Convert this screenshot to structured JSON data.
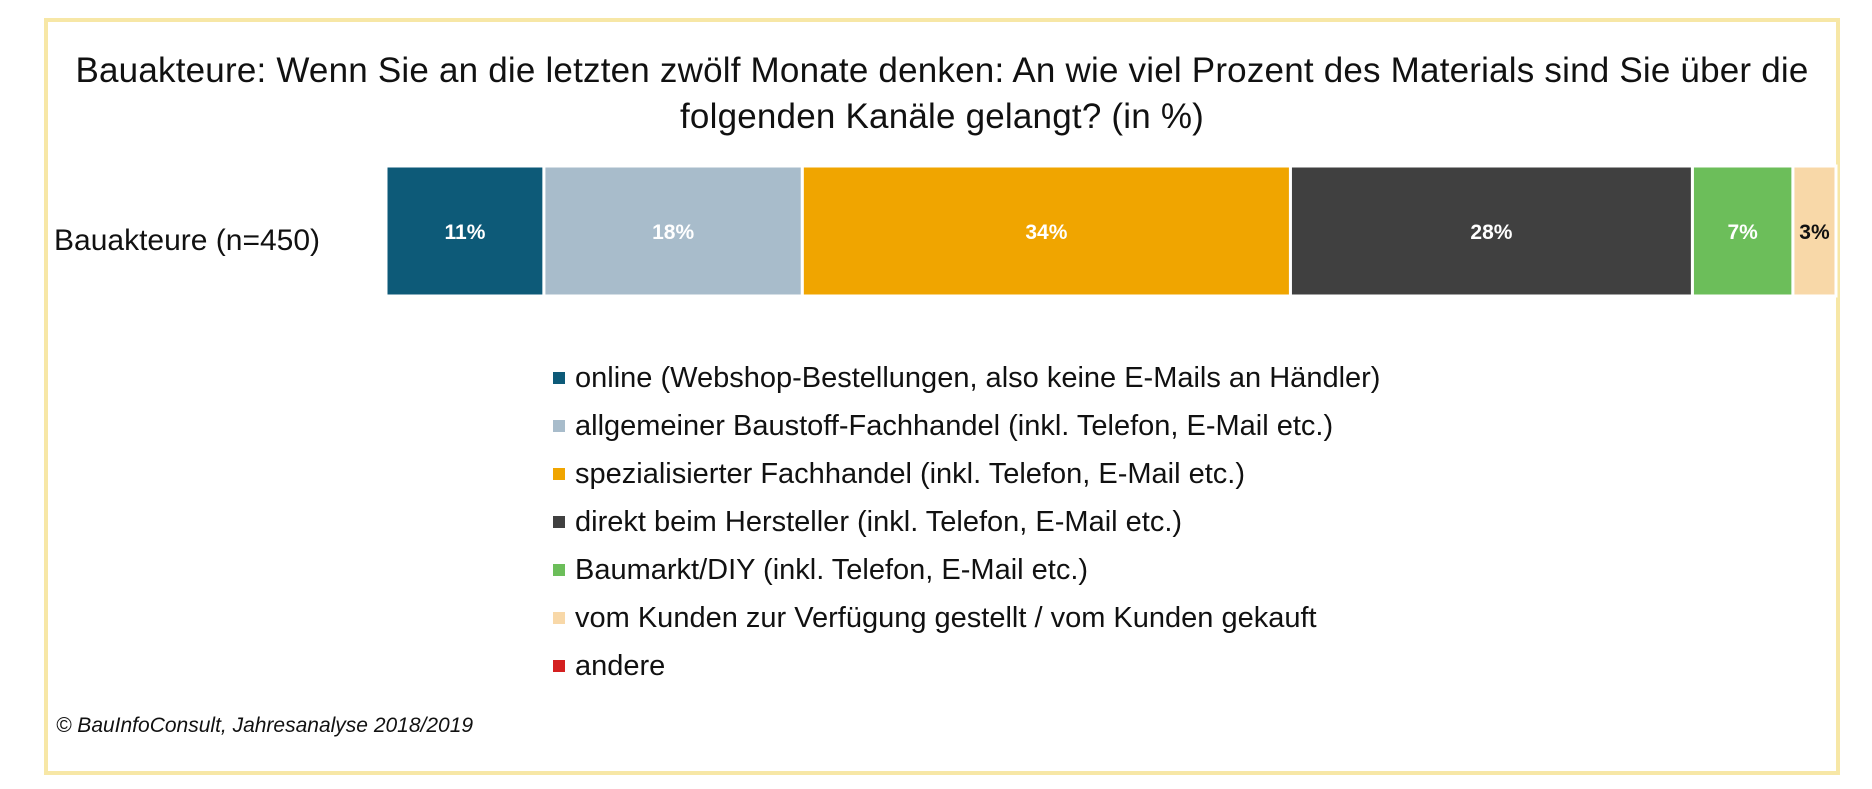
{
  "chart_data": {
    "type": "bar",
    "orientation": "horizontal",
    "stacked": "100%",
    "title": "Bauakteure: Wenn Sie an die letzten zwölf Monate denken: An wie viel Prozent des Materials sind Sie über die folgenden Kanäle gelangt? (in %)",
    "categories": [
      "Bauakteure (n=450)"
    ],
    "series": [
      {
        "name": "online (Webshop-Bestellungen, also keine E-Mails an Händler)",
        "values": [
          11
        ],
        "label": "11%",
        "color": "#0d5a78",
        "label_color": "#ffffff"
      },
      {
        "name": "allgemeiner Baustoff-Fachhandel (inkl. Telefon, E-Mail etc.)",
        "values": [
          18
        ],
        "label": "18%",
        "color": "#a8bccb",
        "label_color": "#ffffff"
      },
      {
        "name": "spezialisierter Fachhandel (inkl. Telefon, E-Mail etc.)",
        "values": [
          34
        ],
        "label": "34%",
        "color": "#f0a500",
        "label_color": "#ffffff"
      },
      {
        "name": "direkt beim Hersteller (inkl. Telefon, E-Mail etc.)",
        "values": [
          28
        ],
        "label": "28%",
        "color": "#404040",
        "label_color": "#ffffff"
      },
      {
        "name": "Baumarkt/DIY (inkl. Telefon, E-Mail etc.)",
        "values": [
          7
        ],
        "label": "7%",
        "color": "#6cbe5a",
        "label_color": "#ffffff"
      },
      {
        "name": "vom Kunden zur Verfügung gestellt / vom Kunden gekauft",
        "values": [
          3
        ],
        "label": "3%",
        "color": "#f8d8a8",
        "label_color": "#111111"
      },
      {
        "name": "andere",
        "values": [
          0
        ],
        "label": "",
        "color": "#d42020",
        "label_color": "#ffffff"
      }
    ],
    "xlim": [
      0,
      101
    ],
    "grid": false,
    "legend_position": "bottom"
  },
  "source": "© BauInfoConsult, Jahresanalyse 2018/2019"
}
